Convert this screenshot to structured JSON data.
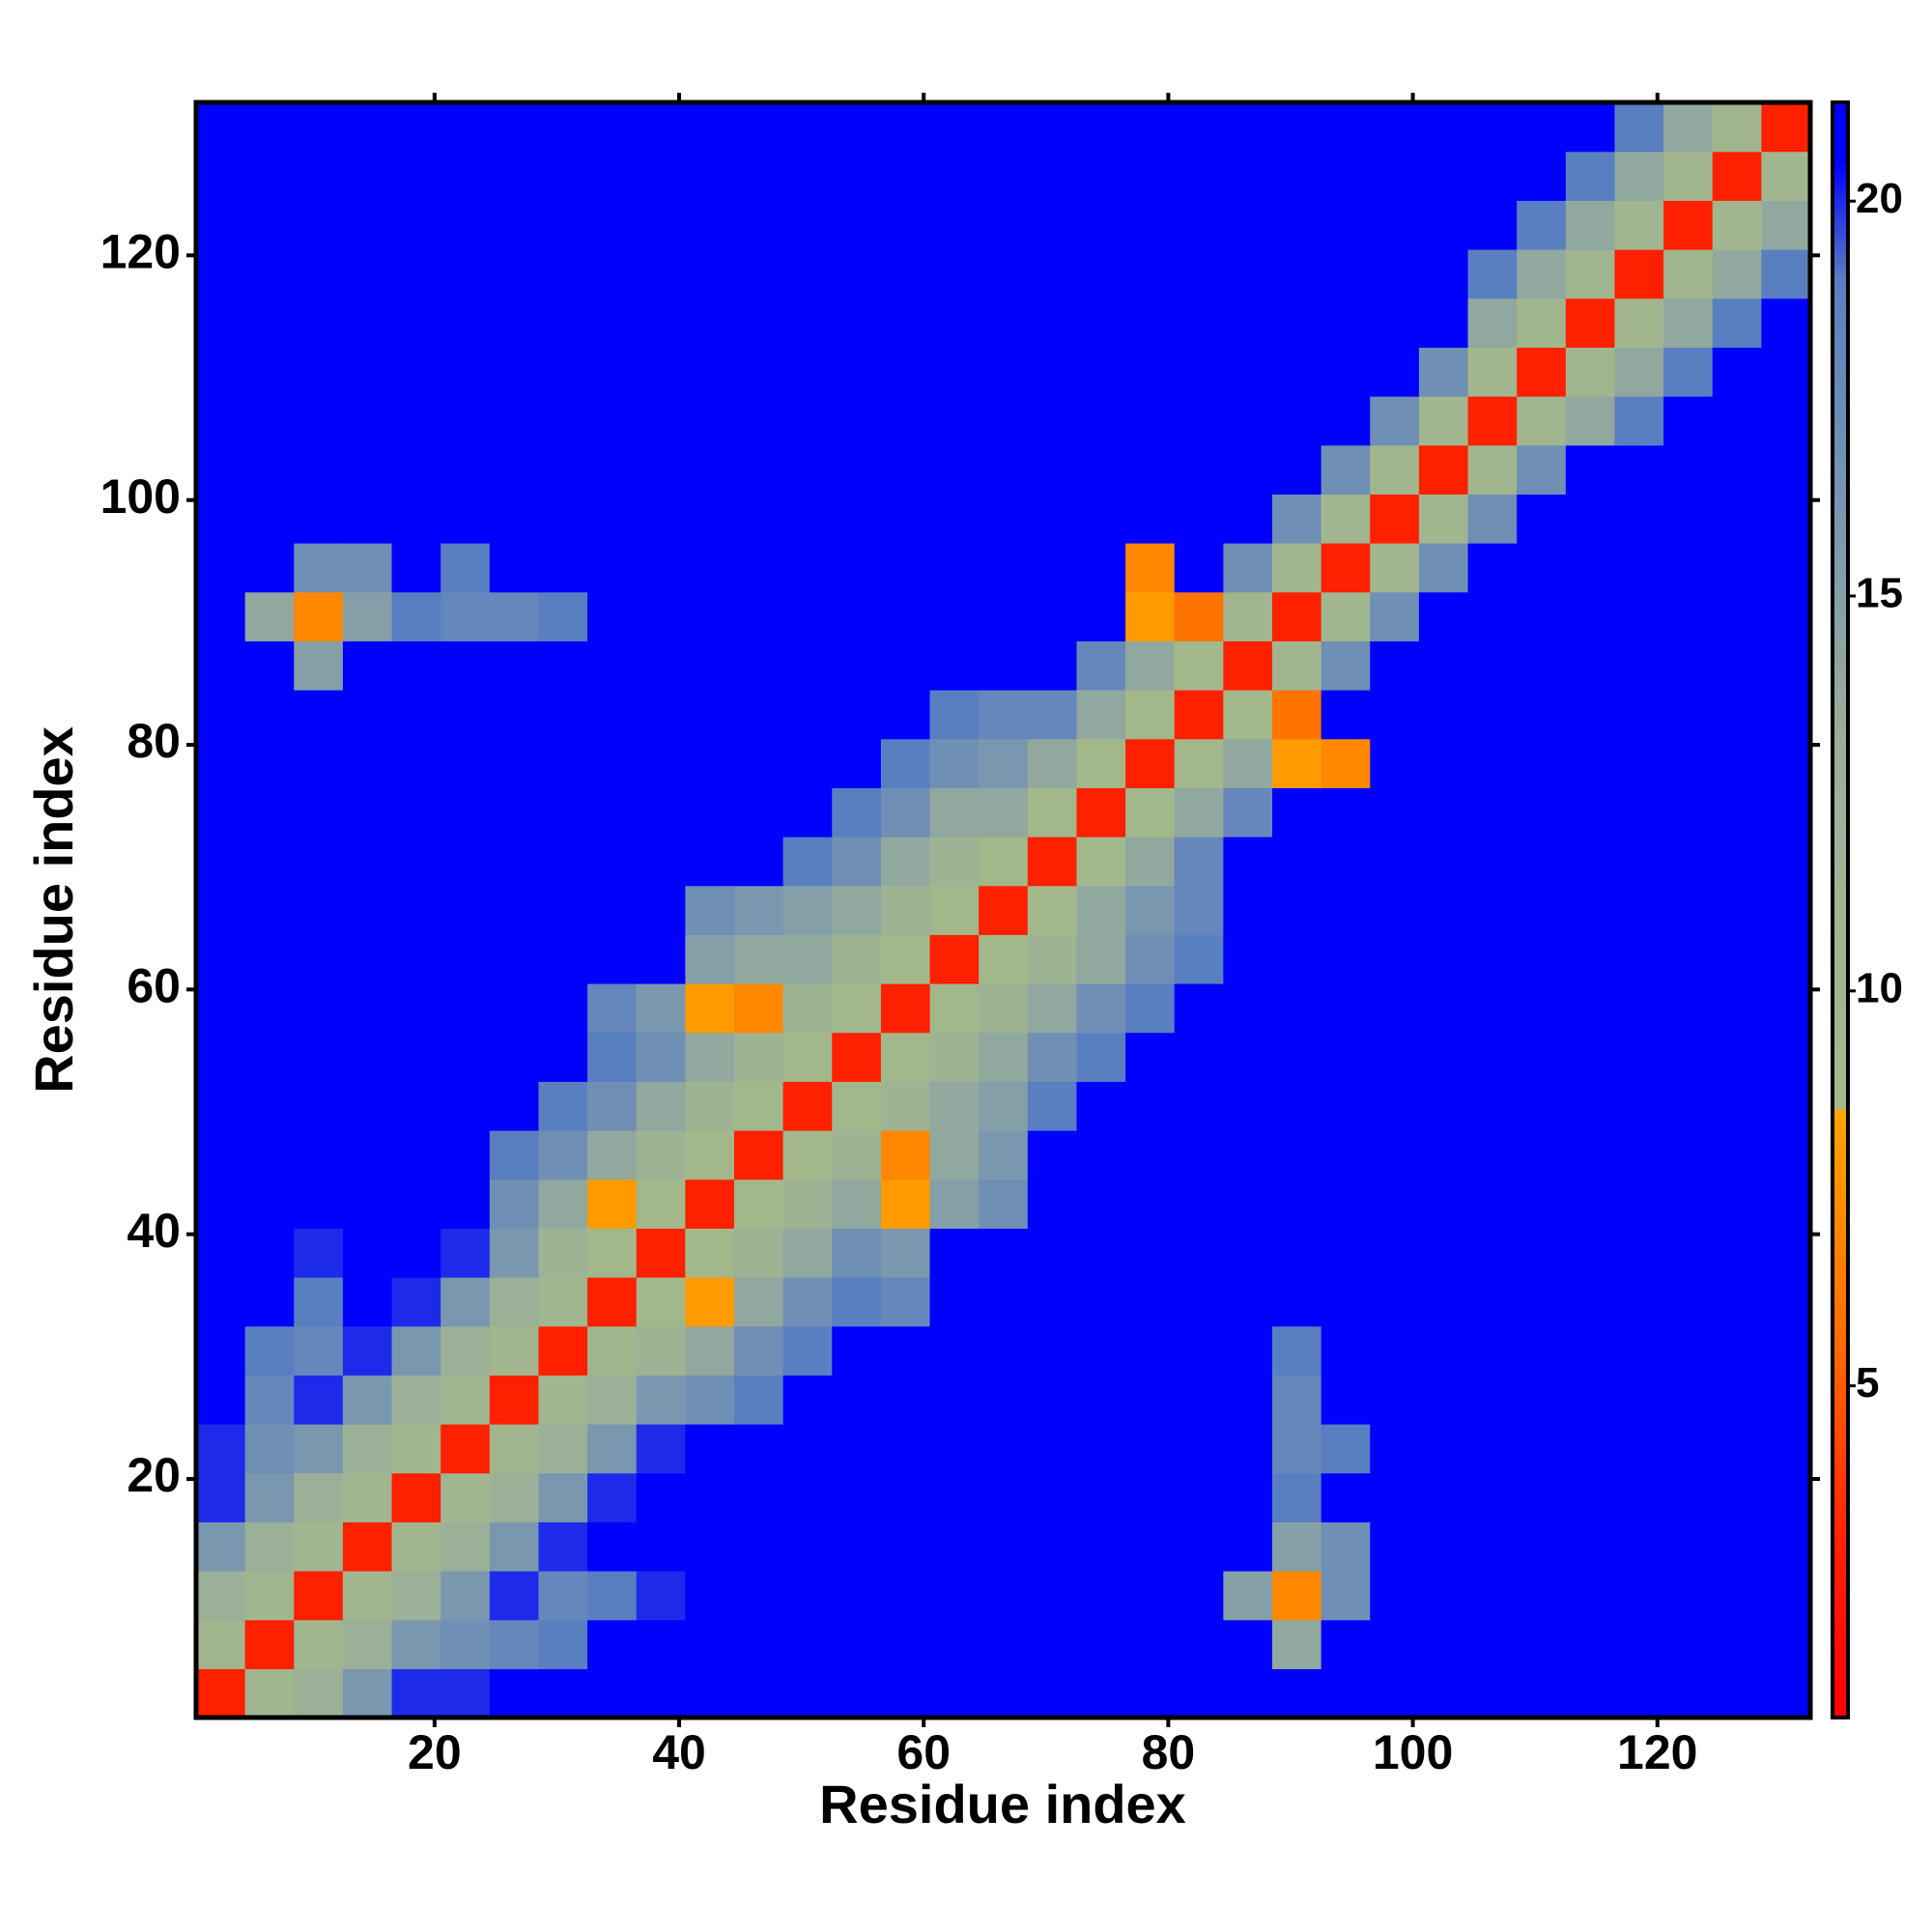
{
  "chart_data": {
    "type": "heatmap",
    "x_label": "Residue index",
    "y_label": "Residue index",
    "xlim": [
      0.5,
      132.5
    ],
    "ylim": [
      0.5,
      132.5
    ],
    "xticks": [
      20,
      40,
      60,
      80,
      100,
      120
    ],
    "yticks": [
      20,
      40,
      60,
      80,
      100,
      120
    ],
    "zlim": [
      0.8,
      21.25
    ],
    "colorbar_ticks": [
      5,
      10,
      15,
      20
    ],
    "colorscale": [
      [
        0.8,
        "#ff0000"
      ],
      [
        3,
        "#ff2000"
      ],
      [
        5.5,
        "#ff6a00"
      ],
      [
        8.5,
        "#ffa500"
      ],
      [
        8.5,
        "#a3b98a"
      ],
      [
        13,
        "#9cb097"
      ],
      [
        16,
        "#7a97b0"
      ],
      [
        19,
        "#5a7fc0"
      ],
      [
        20.5,
        "#0000ff"
      ],
      [
        21.25,
        "#0000ff"
      ]
    ],
    "z": [
      [
        3,
        10,
        13,
        16,
        20,
        20,
        21,
        21,
        21,
        21,
        21,
        21,
        21,
        21,
        21,
        21,
        21,
        21,
        21,
        21,
        21,
        21,
        21,
        21,
        21,
        21,
        21,
        21,
        21,
        21,
        21,
        21,
        21
      ],
      [
        10,
        3,
        10,
        13,
        16,
        17,
        18,
        19,
        21,
        21,
        21,
        21,
        21,
        21,
        21,
        21,
        21,
        21,
        21,
        21,
        21,
        21,
        14,
        21,
        21,
        21,
        21,
        21,
        21,
        21,
        21,
        21,
        21
      ],
      [
        13,
        10,
        3,
        10,
        13,
        16,
        20,
        18,
        19,
        20,
        21,
        21,
        21,
        21,
        21,
        21,
        21,
        21,
        21,
        21,
        21,
        15,
        7,
        17,
        21,
        21,
        21,
        21,
        21,
        21,
        21,
        21,
        21
      ],
      [
        16,
        13,
        10,
        3,
        10,
        13,
        16,
        20,
        21,
        21,
        21,
        21,
        21,
        21,
        21,
        21,
        21,
        21,
        21,
        21,
        21,
        21,
        15,
        17,
        21,
        21,
        21,
        21,
        21,
        21,
        21,
        21,
        21
      ],
      [
        20,
        16,
        13,
        10,
        3,
        10,
        13,
        16,
        20,
        21,
        21,
        21,
        21,
        21,
        21,
        21,
        21,
        21,
        21,
        21,
        21,
        21,
        19,
        21,
        21,
        21,
        21,
        21,
        21,
        21,
        21,
        21,
        21
      ],
      [
        20,
        17,
        16,
        13,
        10,
        3,
        10,
        13,
        16,
        20,
        21,
        21,
        21,
        21,
        21,
        21,
        21,
        21,
        21,
        21,
        21,
        21,
        18,
        19,
        21,
        21,
        21,
        21,
        21,
        21,
        21,
        21,
        21
      ],
      [
        21,
        18,
        20,
        16,
        13,
        10,
        3,
        10,
        13,
        16,
        17,
        19,
        21,
        21,
        21,
        21,
        21,
        21,
        21,
        21,
        21,
        21,
        18,
        21,
        21,
        21,
        21,
        21,
        21,
        21,
        21,
        21,
        21
      ],
      [
        21,
        19,
        18,
        20,
        16,
        13,
        10,
        3,
        10,
        12,
        14,
        17,
        19,
        21,
        21,
        21,
        21,
        21,
        21,
        21,
        21,
        21,
        19,
        21,
        21,
        21,
        21,
        21,
        21,
        21,
        21,
        21,
        21
      ],
      [
        21,
        21,
        19,
        21,
        20,
        16,
        13,
        10,
        3,
        9,
        8,
        14,
        17,
        19,
        18,
        21,
        21,
        21,
        21,
        21,
        21,
        21,
        21,
        21,
        21,
        21,
        21,
        21,
        21,
        21,
        21,
        21,
        21
      ],
      [
        21,
        21,
        20,
        21,
        21,
        20,
        16,
        12,
        9,
        3,
        9,
        12,
        14,
        17,
        16,
        21,
        21,
        21,
        21,
        21,
        21,
        21,
        21,
        21,
        21,
        21,
        21,
        21,
        21,
        21,
        21,
        21,
        21
      ],
      [
        21,
        21,
        21,
        21,
        21,
        21,
        17,
        14,
        8,
        9,
        3,
        9,
        12,
        14,
        8,
        15,
        17,
        21,
        21,
        21,
        21,
        21,
        21,
        21,
        21,
        21,
        21,
        21,
        21,
        21,
        21,
        21,
        21
      ],
      [
        21,
        21,
        21,
        21,
        21,
        21,
        19,
        17,
        14,
        12,
        9,
        3,
        9,
        12,
        7,
        14,
        16,
        21,
        21,
        21,
        21,
        21,
        21,
        21,
        21,
        21,
        21,
        21,
        21,
        21,
        21,
        21,
        21
      ],
      [
        21,
        21,
        21,
        21,
        21,
        21,
        21,
        19,
        17,
        14,
        12,
        9,
        3,
        9,
        12,
        14,
        15,
        19,
        21,
        21,
        21,
        21,
        21,
        21,
        21,
        21,
        21,
        21,
        21,
        21,
        21,
        21,
        21
      ],
      [
        21,
        21,
        21,
        21,
        21,
        21,
        21,
        21,
        19,
        17,
        14,
        12,
        9,
        3,
        9,
        12,
        14,
        17,
        19,
        21,
        21,
        21,
        21,
        21,
        21,
        21,
        21,
        21,
        21,
        21,
        21,
        21,
        21
      ],
      [
        21,
        21,
        21,
        21,
        21,
        21,
        21,
        21,
        18,
        16,
        8,
        7,
        12,
        9,
        3,
        9,
        12,
        14,
        17,
        19,
        21,
        21,
        21,
        21,
        21,
        21,
        21,
        21,
        21,
        21,
        21,
        21,
        21
      ],
      [
        21,
        21,
        21,
        21,
        21,
        21,
        21,
        21,
        21,
        21,
        15,
        14,
        14,
        12,
        9,
        3,
        9,
        12,
        14,
        17,
        19,
        21,
        21,
        21,
        21,
        21,
        21,
        21,
        21,
        21,
        21,
        21,
        21
      ],
      [
        21,
        21,
        21,
        21,
        21,
        21,
        21,
        21,
        21,
        21,
        17,
        16,
        15,
        14,
        12,
        9,
        3,
        9,
        14,
        16,
        18,
        21,
        21,
        21,
        21,
        21,
        21,
        21,
        21,
        21,
        21,
        21,
        21
      ],
      [
        21,
        21,
        21,
        21,
        21,
        21,
        21,
        21,
        21,
        21,
        21,
        21,
        19,
        17,
        14,
        12,
        9,
        3,
        9,
        14,
        18,
        21,
        21,
        21,
        21,
        21,
        21,
        21,
        21,
        21,
        21,
        21,
        21
      ],
      [
        21,
        21,
        21,
        21,
        21,
        21,
        21,
        21,
        21,
        21,
        21,
        21,
        21,
        19,
        17,
        14,
        14,
        9,
        3,
        9,
        14,
        18,
        21,
        21,
        21,
        21,
        21,
        21,
        21,
        21,
        21,
        21,
        21
      ],
      [
        21,
        21,
        21,
        21,
        21,
        21,
        21,
        21,
        21,
        21,
        21,
        21,
        21,
        21,
        19,
        17,
        16,
        14,
        9,
        3,
        9,
        14,
        8,
        7,
        21,
        21,
        21,
        21,
        21,
        21,
        21,
        21,
        21
      ],
      [
        21,
        21,
        21,
        21,
        21,
        21,
        21,
        21,
        21,
        21,
        21,
        21,
        21,
        21,
        21,
        19,
        18,
        18,
        14,
        9,
        3,
        9,
        6,
        21,
        21,
        21,
        21,
        21,
        21,
        21,
        21,
        21,
        21
      ],
      [
        21,
        21,
        15,
        21,
        21,
        21,
        21,
        21,
        21,
        21,
        21,
        21,
        21,
        21,
        21,
        21,
        21,
        21,
        18,
        14,
        9,
        3,
        10,
        17,
        21,
        21,
        21,
        21,
        21,
        21,
        21,
        21,
        21
      ],
      [
        21,
        14,
        7,
        15,
        19,
        18,
        18,
        19,
        21,
        21,
        21,
        21,
        21,
        21,
        21,
        21,
        21,
        21,
        21,
        8,
        6,
        10,
        3,
        10,
        17,
        21,
        21,
        21,
        21,
        21,
        21,
        21,
        21
      ],
      [
        21,
        21,
        17,
        17,
        21,
        19,
        21,
        21,
        21,
        21,
        21,
        21,
        21,
        21,
        21,
        21,
        21,
        21,
        21,
        7,
        21,
        17,
        10,
        3,
        10,
        17,
        21,
        21,
        21,
        21,
        21,
        21,
        21
      ],
      [
        21,
        21,
        21,
        21,
        21,
        21,
        21,
        21,
        21,
        21,
        21,
        21,
        21,
        21,
        21,
        21,
        21,
        21,
        21,
        21,
        21,
        21,
        17,
        10,
        3,
        10,
        17,
        21,
        21,
        21,
        21,
        21,
        21
      ],
      [
        21,
        21,
        21,
        21,
        21,
        21,
        21,
        21,
        21,
        21,
        21,
        21,
        21,
        21,
        21,
        21,
        21,
        21,
        21,
        21,
        21,
        21,
        21,
        17,
        10,
        3,
        10,
        17,
        21,
        21,
        21,
        21,
        21
      ],
      [
        21,
        21,
        21,
        21,
        21,
        21,
        21,
        21,
        21,
        21,
        21,
        21,
        21,
        21,
        21,
        21,
        21,
        21,
        21,
        21,
        21,
        21,
        21,
        21,
        17,
        10,
        3,
        10,
        14,
        19,
        21,
        21,
        21
      ],
      [
        21,
        21,
        21,
        21,
        21,
        21,
        21,
        21,
        21,
        21,
        21,
        21,
        21,
        21,
        21,
        21,
        21,
        21,
        21,
        21,
        21,
        21,
        21,
        21,
        21,
        17,
        10,
        3,
        10,
        14,
        19,
        21,
        21
      ],
      [
        21,
        21,
        21,
        21,
        21,
        21,
        21,
        21,
        21,
        21,
        21,
        21,
        21,
        21,
        21,
        21,
        21,
        21,
        21,
        21,
        21,
        21,
        21,
        21,
        21,
        21,
        14,
        10,
        3,
        10,
        14,
        19,
        21
      ],
      [
        21,
        21,
        21,
        21,
        21,
        21,
        21,
        21,
        21,
        21,
        21,
        21,
        21,
        21,
        21,
        21,
        21,
        21,
        21,
        21,
        21,
        21,
        21,
        21,
        21,
        21,
        19,
        14,
        10,
        3,
        10,
        14,
        19
      ],
      [
        21,
        21,
        21,
        21,
        21,
        21,
        21,
        21,
        21,
        21,
        21,
        21,
        21,
        21,
        21,
        21,
        21,
        21,
        21,
        21,
        21,
        21,
        21,
        21,
        21,
        21,
        21,
        19,
        14,
        10,
        3,
        10,
        14
      ],
      [
        21,
        21,
        21,
        21,
        21,
        21,
        21,
        21,
        21,
        21,
        21,
        21,
        21,
        21,
        21,
        21,
        21,
        21,
        21,
        21,
        21,
        21,
        21,
        21,
        21,
        21,
        21,
        21,
        19,
        14,
        10,
        3,
        10
      ],
      [
        21,
        21,
        21,
        21,
        21,
        21,
        21,
        21,
        21,
        21,
        21,
        21,
        21,
        21,
        21,
        21,
        21,
        21,
        21,
        21,
        21,
        21,
        21,
        21,
        21,
        21,
        21,
        21,
        21,
        19,
        14,
        10,
        3
      ]
    ]
  }
}
